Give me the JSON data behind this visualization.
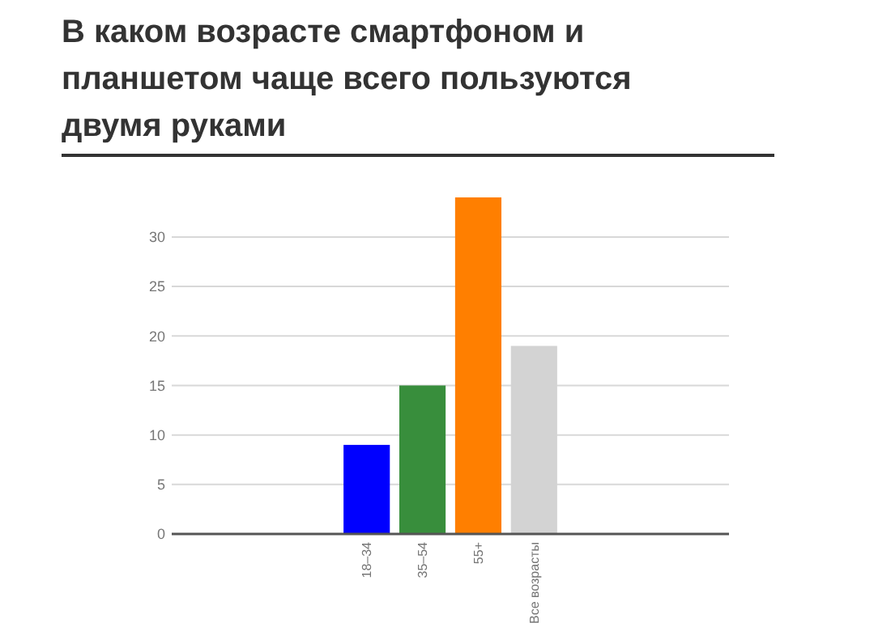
{
  "chart_data": {
    "type": "bar",
    "title": "В каком возрасте смартфоном и планшетом чаще всего пользуются двумя руками",
    "categories": [
      null,
      null,
      null,
      "18–34",
      "35–54",
      "55+",
      "Все возрасты",
      null,
      null,
      null
    ],
    "values": [
      null,
      null,
      null,
      9,
      15,
      34,
      19,
      null,
      null,
      null
    ],
    "colors": [
      null,
      null,
      null,
      "#0000ff",
      "#388e3c",
      "#ff7f00",
      "#d3d3d3",
      null,
      null,
      null
    ],
    "ylim": [
      0,
      34
    ],
    "yticks": [
      0,
      5,
      10,
      15,
      20,
      25,
      30
    ],
    "grid": "y"
  }
}
